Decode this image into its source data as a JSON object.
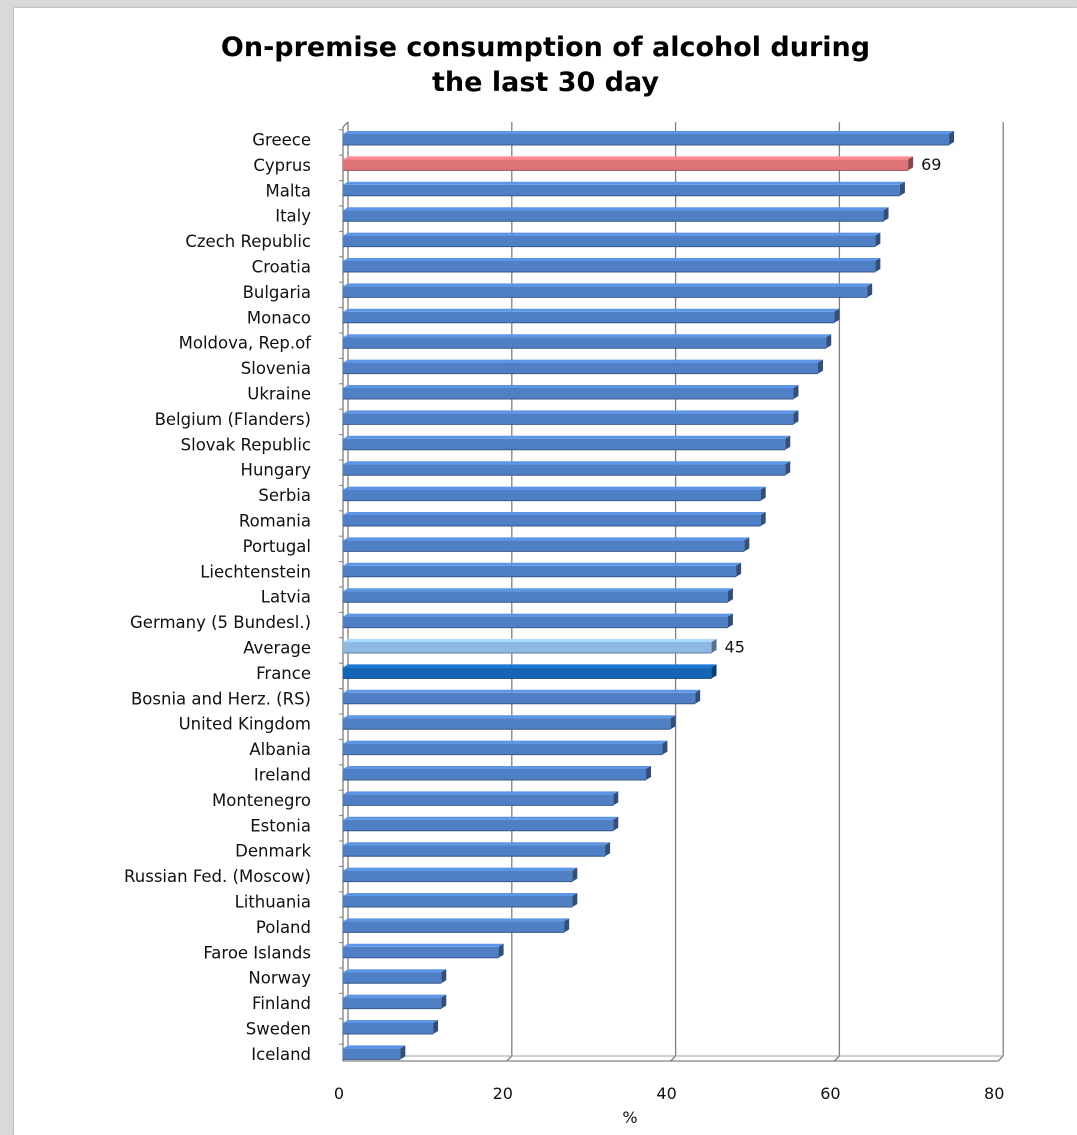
{
  "chart_data": {
    "type": "bar",
    "orientation": "horizontal",
    "title": "On-premise consumption of alcohol during the last 30 day",
    "title_lines": [
      "On-premise consumption of alcohol during",
      "the last 30 day"
    ],
    "xlabel": "%",
    "ylabel": "",
    "xlim": [
      0,
      80
    ],
    "xticks": [
      0,
      20,
      40,
      60,
      80
    ],
    "grid": true,
    "legend": "none",
    "categories": [
      "Greece",
      "Cyprus",
      "Malta",
      "Italy",
      "Czech Republic",
      "Croatia",
      "Bulgaria",
      "Monaco",
      "Moldova, Rep.of",
      "Slovenia",
      "Ukraine",
      "Belgium (Flanders)",
      "Slovak Republic",
      "Hungary",
      "Serbia",
      "Romania",
      "Portugal",
      "Liechtenstein",
      "Latvia",
      "Germany (5 Bundesl.)",
      "Average",
      "France",
      "Bosnia and Herz. (RS)",
      "United Kingdom",
      "Albania",
      "Ireland",
      "Montenegro",
      "Estonia",
      "Denmark",
      "Russian Fed. (Moscow)",
      "Lithuania",
      "Poland",
      "Faroe Islands",
      "Norway",
      "Finland",
      "Sweden",
      "Iceland"
    ],
    "values": [
      74,
      69,
      68,
      66,
      65,
      65,
      64,
      60,
      59,
      58,
      55,
      55,
      54,
      54,
      51,
      51,
      49,
      48,
      47,
      47,
      45,
      45,
      43,
      40,
      39,
      37,
      33,
      33,
      32,
      28,
      28,
      27,
      19,
      12,
      12,
      11,
      7
    ],
    "data_labels": [
      {
        "category": "Cyprus",
        "text": "69"
      },
      {
        "category": "Average",
        "text": "45"
      }
    ],
    "colors": {
      "default": "#4f7fc4",
      "Cyprus": "#de7478",
      "Average": "#8fb9e2",
      "France": "#1565b6"
    }
  }
}
